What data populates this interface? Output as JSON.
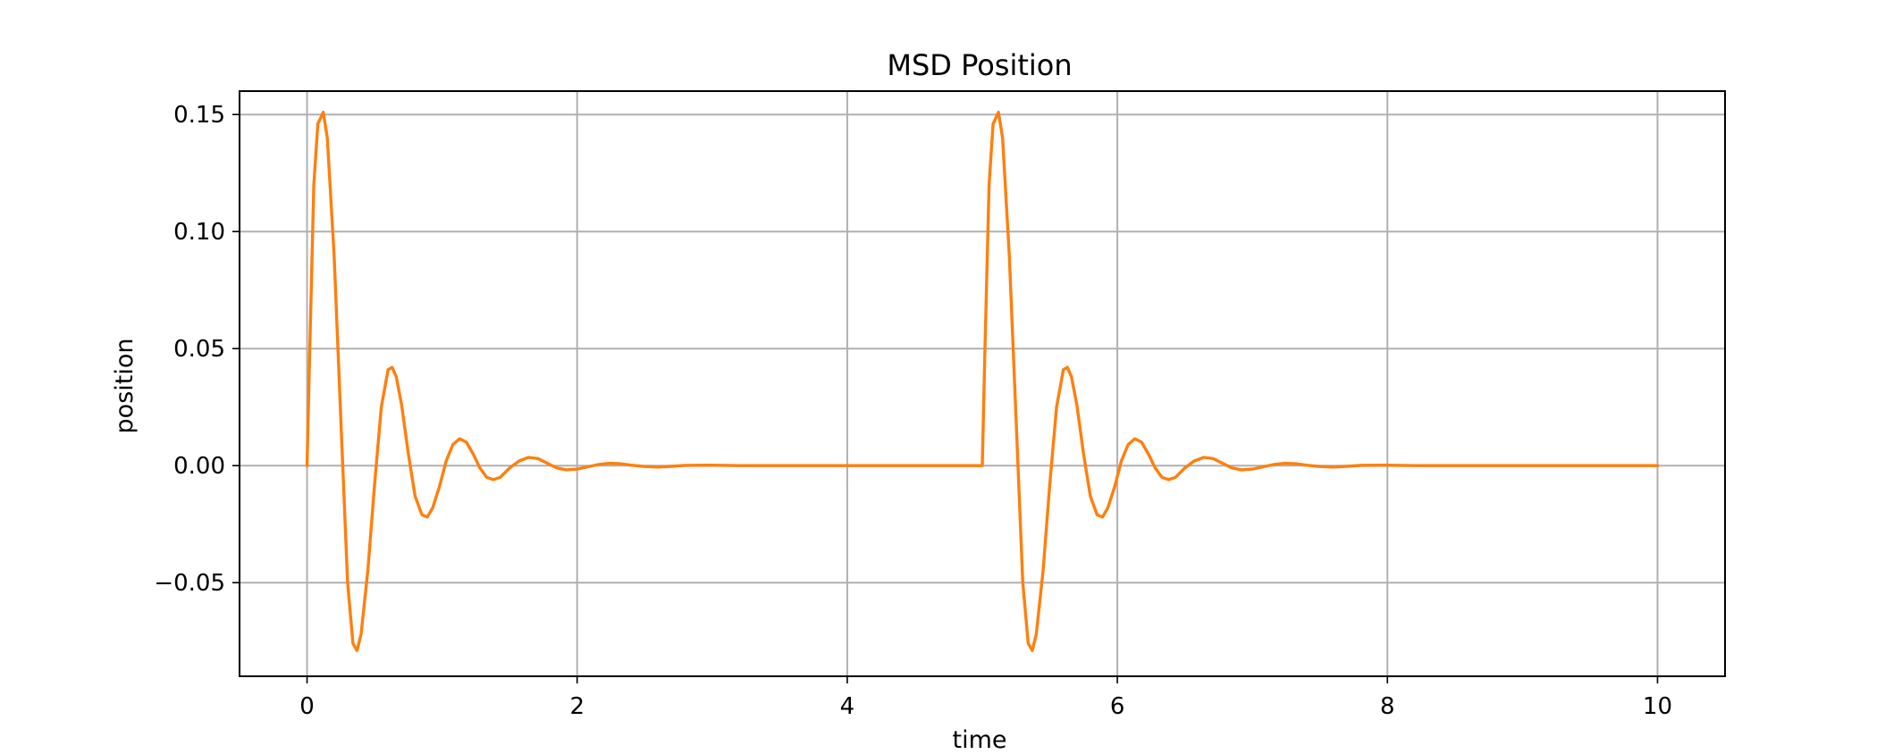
{
  "chart_data": {
    "type": "line",
    "title": "MSD Position",
    "xlabel": "time",
    "ylabel": "position",
    "xlim": [
      -0.5,
      10.5
    ],
    "ylim": [
      -0.09,
      0.16
    ],
    "x_ticks": [
      0,
      2,
      4,
      6,
      8,
      10
    ],
    "x_tick_labels": [
      "0",
      "2",
      "4",
      "6",
      "8",
      "10"
    ],
    "y_ticks": [
      -0.05,
      0.0,
      0.05,
      0.1,
      0.15
    ],
    "y_tick_labels": [
      "−0.05",
      "0.00",
      "0.05",
      "0.10",
      "0.15"
    ],
    "grid": true,
    "legend": "none",
    "colors": {
      "series": "#ff7f0e",
      "grid": "#b0b0b0",
      "frame": "#000000"
    },
    "series": [
      {
        "x": [
          0.0,
          0.02,
          0.05,
          0.08,
          0.12,
          0.15,
          0.2,
          0.25,
          0.3,
          0.34,
          0.37,
          0.4,
          0.45,
          0.5,
          0.55,
          0.6,
          0.63,
          0.66,
          0.7,
          0.75,
          0.8,
          0.85,
          0.89,
          0.93,
          0.98,
          1.03,
          1.08,
          1.13,
          1.18,
          1.23,
          1.28,
          1.33,
          1.38,
          1.43,
          1.5,
          1.57,
          1.64,
          1.71,
          1.78,
          1.85,
          1.92,
          2.0,
          2.08,
          2.16,
          2.24,
          2.32,
          2.4,
          2.5,
          2.6,
          2.7,
          2.8,
          3.0,
          3.2,
          3.5,
          4.0,
          4.5,
          5.0,
          5.02,
          5.05,
          5.08,
          5.12,
          5.15,
          5.2,
          5.25,
          5.3,
          5.34,
          5.37,
          5.4,
          5.45,
          5.5,
          5.55,
          5.6,
          5.63,
          5.66,
          5.7,
          5.75,
          5.8,
          5.85,
          5.89,
          5.93,
          5.98,
          6.03,
          6.08,
          6.13,
          6.18,
          6.23,
          6.28,
          6.33,
          6.38,
          6.43,
          6.5,
          6.57,
          6.64,
          6.71,
          6.78,
          6.85,
          6.92,
          7.0,
          7.08,
          7.16,
          7.24,
          7.32,
          7.4,
          7.5,
          7.6,
          7.7,
          7.8,
          8.0,
          8.2,
          8.5,
          9.0,
          9.5,
          10.0
        ],
        "y": [
          0.0,
          0.05,
          0.12,
          0.146,
          0.151,
          0.14,
          0.09,
          0.02,
          -0.05,
          -0.076,
          -0.079,
          -0.072,
          -0.045,
          -0.008,
          0.025,
          0.041,
          0.042,
          0.038,
          0.026,
          0.005,
          -0.013,
          -0.021,
          -0.022,
          -0.018,
          -0.009,
          0.002,
          0.009,
          0.0115,
          0.01,
          0.005,
          -0.001,
          -0.005,
          -0.006,
          -0.005,
          -0.001,
          0.002,
          0.0035,
          0.003,
          0.001,
          -0.001,
          -0.0018,
          -0.0015,
          -0.0005,
          0.0005,
          0.001,
          0.0008,
          0.0002,
          -0.0004,
          -0.0006,
          -0.0003,
          0.0001,
          0.0002,
          0.0,
          0.0,
          0.0,
          0.0,
          0.0,
          0.05,
          0.12,
          0.146,
          0.151,
          0.14,
          0.09,
          0.02,
          -0.05,
          -0.076,
          -0.079,
          -0.072,
          -0.045,
          -0.008,
          0.025,
          0.041,
          0.042,
          0.038,
          0.026,
          0.005,
          -0.013,
          -0.021,
          -0.022,
          -0.018,
          -0.009,
          0.002,
          0.009,
          0.0115,
          0.01,
          0.005,
          -0.001,
          -0.005,
          -0.006,
          -0.005,
          -0.001,
          0.002,
          0.0035,
          0.003,
          0.001,
          -0.001,
          -0.0018,
          -0.0015,
          -0.0005,
          0.0005,
          0.001,
          0.0008,
          0.0002,
          -0.0004,
          -0.0006,
          -0.0003,
          0.0001,
          0.0002,
          0.0,
          0.0,
          0.0,
          0.0,
          0.0
        ]
      }
    ]
  }
}
